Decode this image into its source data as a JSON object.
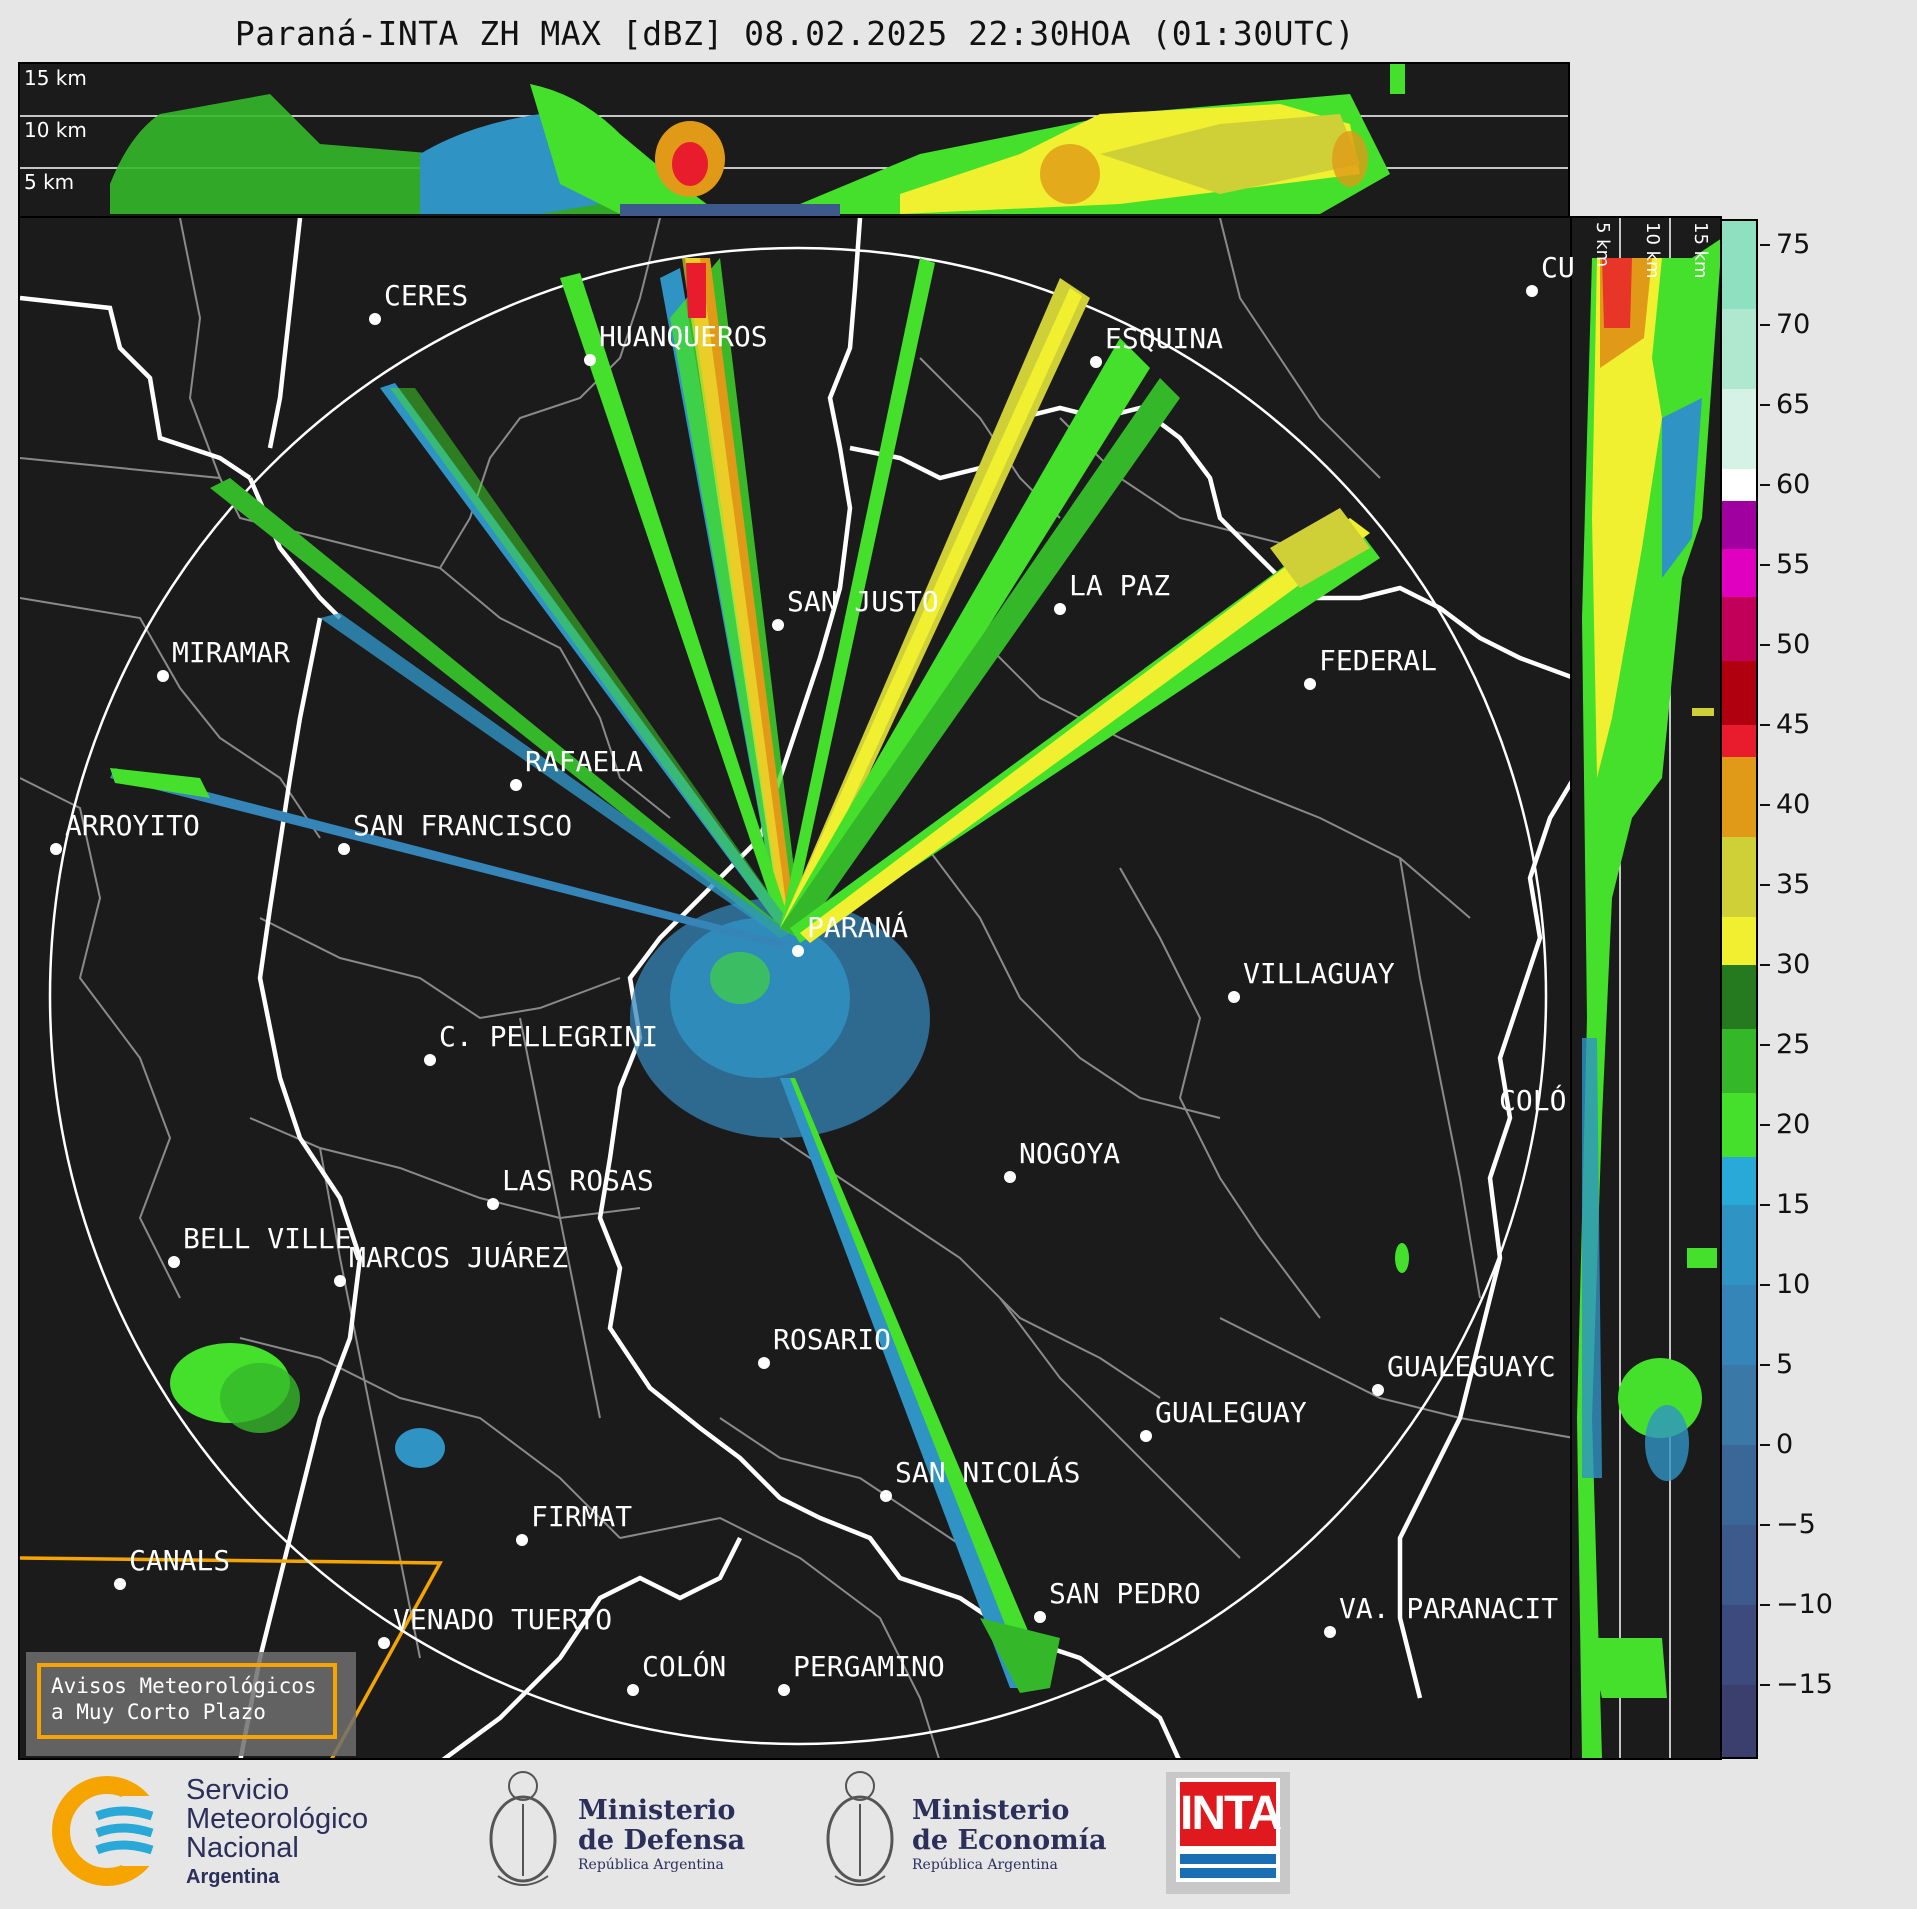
{
  "title": "Paraná-INTA ZH MAX [dBZ] 08.02.2025 22:30HOA (01:30UTC)",
  "top_panel": {
    "labels": [
      "15 km",
      "10 km",
      "5 km"
    ]
  },
  "side_panel": {
    "labels": [
      "5 km",
      "10 km",
      "15 km"
    ]
  },
  "cities": [
    {
      "name": "CERES"
    },
    {
      "name": "HUANQUEROS"
    },
    {
      "name": "ESQUINA"
    },
    {
      "name": "CU"
    },
    {
      "name": "SAN JUSTO"
    },
    {
      "name": "LA PAZ"
    },
    {
      "name": "MIRAMAR"
    },
    {
      "name": "FEDERAL"
    },
    {
      "name": "RAFAELA"
    },
    {
      "name": "ARROYITO"
    },
    {
      "name": "SAN FRANCISCO"
    },
    {
      "name": "PARANÁ"
    },
    {
      "name": "VILLAGUAY"
    },
    {
      "name": "C. PELLEGRINI"
    },
    {
      "name": "COLÓ"
    },
    {
      "name": "NOGOYA"
    },
    {
      "name": "LAS ROSAS"
    },
    {
      "name": "BELL VILLE"
    },
    {
      "name": "MARCOS JUÁREZ"
    },
    {
      "name": "ROSARIO"
    },
    {
      "name": "GUALEGUAYC"
    },
    {
      "name": "GUALEGUAY"
    },
    {
      "name": "SAN NICOLÁS"
    },
    {
      "name": "FIRMAT"
    },
    {
      "name": "CANALS"
    },
    {
      "name": "SAN PEDRO"
    },
    {
      "name": "VENADO TUERTO"
    },
    {
      "name": "VA. PARANACIT"
    },
    {
      "name": "COLÓN"
    },
    {
      "name": "PERGAMINO"
    }
  ],
  "colorbar": {
    "ticks": [
      "75",
      "70",
      "65",
      "60",
      "55",
      "50",
      "45",
      "40",
      "35",
      "30",
      "25",
      "20",
      "15",
      "10",
      "5",
      "0",
      "−5",
      "−10",
      "−15"
    ],
    "min": -19.5,
    "max": 76.5,
    "stops": [
      {
        "from": -19.5,
        "to": -15,
        "color": "#3b3f6e"
      },
      {
        "from": -15,
        "to": -10,
        "color": "#3c4a7d"
      },
      {
        "from": -10,
        "to": -5,
        "color": "#3e5a8c"
      },
      {
        "from": -5,
        "to": 0,
        "color": "#3b6798"
      },
      {
        "from": 0,
        "to": 5,
        "color": "#3a78a8"
      },
      {
        "from": 5,
        "to": 10,
        "color": "#3585b8"
      },
      {
        "from": 10,
        "to": 15,
        "color": "#2f93c4"
      },
      {
        "from": 15,
        "to": 18,
        "color": "#29a9d8"
      },
      {
        "from": 18,
        "to": 22,
        "color": "#44e02c"
      },
      {
        "from": 22,
        "to": 26,
        "color": "#34b82a"
      },
      {
        "from": 26,
        "to": 30,
        "color": "#257a20"
      },
      {
        "from": 30,
        "to": 33,
        "color": "#f0f030"
      },
      {
        "from": 33,
        "to": 38,
        "color": "#cfcf38"
      },
      {
        "from": 38,
        "to": 43,
        "color": "#e09a18"
      },
      {
        "from": 43,
        "to": 45,
        "color": "#e81c2c"
      },
      {
        "from": 45,
        "to": 49,
        "color": "#b00010"
      },
      {
        "from": 49,
        "to": 53,
        "color": "#c2005a"
      },
      {
        "from": 53,
        "to": 56,
        "color": "#e000c0"
      },
      {
        "from": 56,
        "to": 59,
        "color": "#a000a0"
      },
      {
        "from": 59,
        "to": 61,
        "color": "#ffffff"
      },
      {
        "from": 61,
        "to": 66,
        "color": "#d6f2e6"
      },
      {
        "from": 66,
        "to": 71,
        "color": "#b0e8cf"
      },
      {
        "from": 71,
        "to": 76.5,
        "color": "#8ee0c0"
      }
    ]
  },
  "notice": {
    "line1": "Avisos Meteorológicos",
    "line2": "a Muy Corto Plazo"
  },
  "footer": {
    "smn": [
      "Servicio",
      "Meteorológico",
      "Nacional",
      "Argentina"
    ],
    "defensa": [
      "Ministerio",
      "de Defensa",
      "República Argentina"
    ],
    "economia": [
      "Ministerio",
      "de Economía",
      "República Argentina"
    ],
    "inta": "INTA"
  },
  "colors": {
    "panel_bg": "#1b1b1b",
    "warning_orange": "#f5a400",
    "border_white": "#ffffff"
  }
}
